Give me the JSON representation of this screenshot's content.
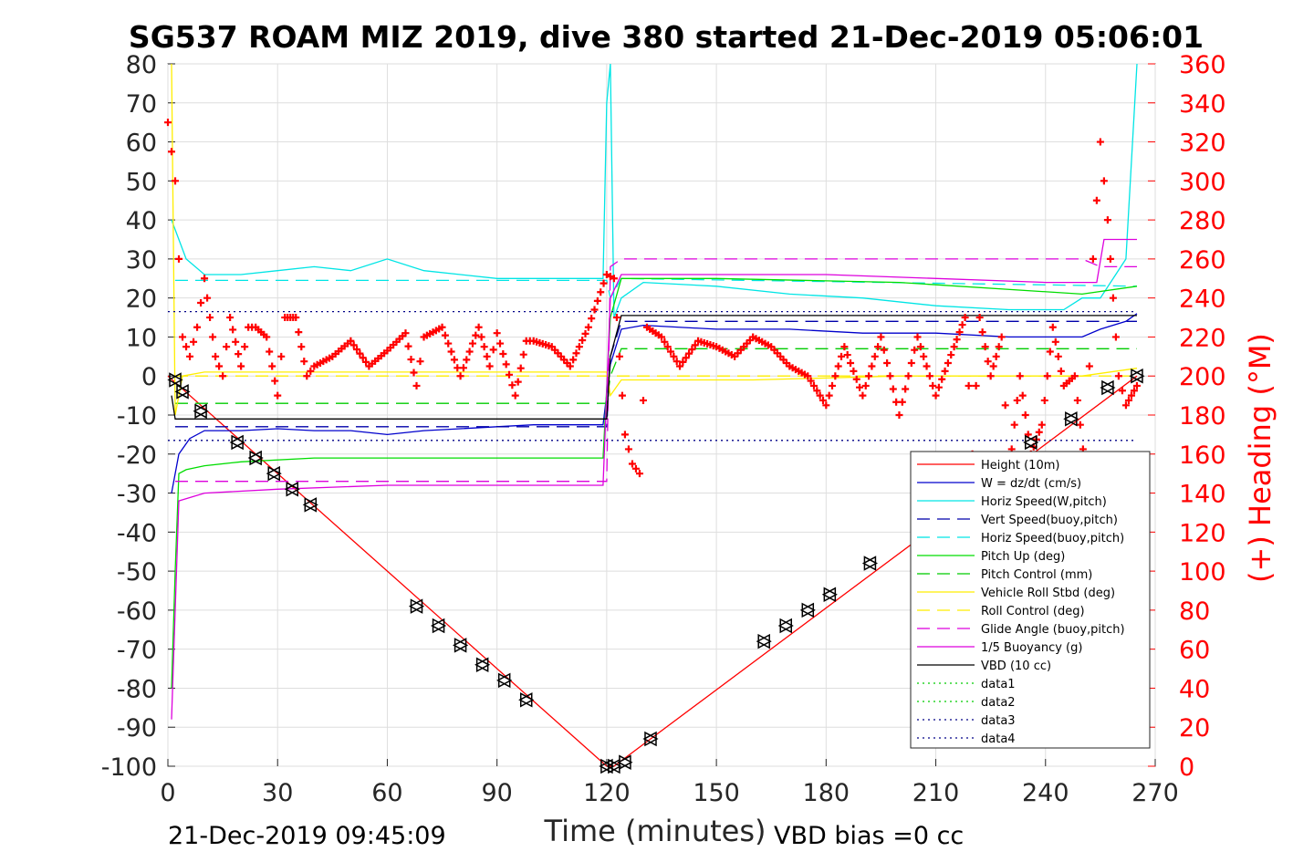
{
  "chart_data": {
    "type": "line",
    "title": "SG537 ROAM MIZ 2019, dive 380 started 21-Dec-2019 05:06:01",
    "xlabel": "Time (minutes)",
    "ylabel_right": "(+) Heading (°M)",
    "xlim": [
      0,
      270
    ],
    "ylim": [
      -100,
      80
    ],
    "ylim_right": [
      0,
      360
    ],
    "x_ticks": [
      "0",
      "30",
      "60",
      "90",
      "120",
      "150",
      "180",
      "210",
      "240",
      "270"
    ],
    "y_ticks": [
      "80",
      "70",
      "60",
      "50",
      "40",
      "30",
      "20",
      "10",
      "0",
      "-10",
      "-20",
      "-30",
      "-40",
      "-50",
      "-60",
      "-70",
      "-80",
      "-90",
      "-100"
    ],
    "y_ticks_right": [
      "360",
      "340",
      "320",
      "300",
      "280",
      "260",
      "240",
      "220",
      "200",
      "180",
      "160",
      "140",
      "120",
      "100",
      "80",
      "60",
      "40",
      "20",
      "0"
    ],
    "grid": true,
    "legend_position": "bottom-right",
    "footer_left": "21-Dec-2019 09:45:09",
    "footer_right": "VBD bias =0 cc",
    "colors": {
      "red": "#ff0000",
      "blue": "#0000cc",
      "cyan": "#00e5e5",
      "green": "#00dd00",
      "yellow": "#ffee00",
      "magenta": "#dd00dd",
      "black": "#000000",
      "navy": "#000088"
    },
    "series": [
      {
        "name": "Height (10m)",
        "color": "#ff0000",
        "style": "solid",
        "x": [
          0,
          120,
          122,
          265
        ],
        "y": [
          0,
          -100,
          -100,
          0
        ]
      },
      {
        "name": "W = dz/dt (cm/s)",
        "color": "#0000cc",
        "style": "solid",
        "x": [
          1,
          3,
          6,
          10,
          20,
          30,
          40,
          50,
          60,
          70,
          80,
          90,
          100,
          110,
          119,
          121,
          124,
          130,
          150,
          170,
          190,
          210,
          230,
          245,
          250,
          255,
          262,
          265
        ],
        "y": [
          -30,
          -20,
          -16,
          -14,
          -14,
          -13.5,
          -14,
          -14,
          -15,
          -14,
          -13.5,
          -13,
          -12.5,
          -12.5,
          -12.5,
          3,
          12,
          13,
          12,
          12,
          11,
          11,
          10,
          10,
          10,
          12,
          14,
          16
        ]
      },
      {
        "name": "Horiz Speed(W,pitch)",
        "color": "#00e5e5",
        "style": "solid",
        "x": [
          1,
          3,
          5,
          10,
          20,
          30,
          40,
          50,
          60,
          70,
          80,
          90,
          100,
          110,
          119,
          120,
          121,
          122,
          124,
          130,
          150,
          170,
          190,
          210,
          230,
          245,
          250,
          255,
          262,
          265
        ],
        "y": [
          40,
          35,
          30,
          26,
          26,
          27,
          28,
          27,
          30,
          27,
          26,
          25,
          25,
          25,
          25,
          70,
          80,
          15,
          20,
          24,
          23,
          21,
          20,
          18,
          17,
          17,
          20,
          20,
          30,
          80
        ]
      },
      {
        "name": "Vert Speed(buoy,pitch)",
        "color": "#0000aa",
        "style": "dashed",
        "x": [
          2,
          120,
          121,
          124,
          265
        ],
        "y": [
          -13,
          -13,
          5,
          14,
          14
        ]
      },
      {
        "name": "Horiz Speed(buoy,pitch)",
        "color": "#00e5e5",
        "style": "dashed",
        "x": [
          2,
          120,
          121,
          124,
          265
        ],
        "y": [
          24.5,
          24.5,
          20,
          25,
          23
        ]
      },
      {
        "name": "Pitch Up (deg)",
        "color": "#00dd00",
        "style": "solid",
        "x": [
          1,
          2,
          3,
          5,
          10,
          20,
          40,
          60,
          80,
          100,
          119,
          121,
          124,
          150,
          200,
          250,
          265
        ],
        "y": [
          -80,
          -50,
          -25,
          -24,
          -23,
          -22,
          -21,
          -21,
          -21,
          -21,
          -21,
          15,
          25,
          25,
          24,
          21,
          23
        ]
      },
      {
        "name": "Pitch Control (mm)",
        "color": "#00cc00",
        "style": "dashed",
        "x": [
          2,
          120,
          121,
          124,
          265
        ],
        "y": [
          -7,
          -7,
          0,
          7,
          7
        ]
      },
      {
        "name": "Vehicle Roll Stbd (deg)",
        "color": "#ffee00",
        "style": "solid",
        "x": [
          1,
          2,
          4,
          10,
          40,
          80,
          120,
          121,
          124,
          160,
          200,
          240,
          250,
          265
        ],
        "y": [
          80,
          -10,
          0,
          1,
          1,
          1,
          1,
          -5,
          -1,
          -1,
          0,
          0,
          0,
          2
        ]
      },
      {
        "name": "Roll Control (deg)",
        "color": "#ffee00",
        "style": "dashed",
        "x": [
          2,
          120,
          121,
          265
        ],
        "y": [
          0,
          0,
          0,
          0
        ]
      },
      {
        "name": "Glide Angle (buoy,pitch)",
        "color": "#dd00dd",
        "style": "dashed",
        "x": [
          2,
          120,
          121,
          124,
          250,
          255,
          265
        ],
        "y": [
          -27,
          -27,
          28,
          30,
          30,
          28,
          28
        ]
      },
      {
        "name": "1/5 Buoyancy (g)",
        "color": "#dd00dd",
        "style": "solid",
        "x": [
          1,
          3,
          10,
          30,
          60,
          90,
          119,
          121,
          124,
          180,
          240,
          254,
          256,
          265
        ],
        "y": [
          -88,
          -32,
          -30,
          -29,
          -28,
          -28,
          -28,
          20,
          26,
          26,
          24,
          24,
          35,
          35
        ]
      },
      {
        "name": "VBD (10 cc)",
        "color": "#000000",
        "style": "solid",
        "x": [
          1,
          2,
          120,
          121,
          124,
          265
        ],
        "y": [
          -5,
          -11,
          -11,
          5,
          15.5,
          15.5
        ]
      },
      {
        "name": "data1",
        "color": "#00cc00",
        "style": "dotted",
        "x": [],
        "y": []
      },
      {
        "name": "data2",
        "color": "#00cc00",
        "style": "dotted",
        "x": [],
        "y": []
      },
      {
        "name": "data3",
        "color": "#000088",
        "style": "dotted",
        "x": [
          0,
          265
        ],
        "y": [
          -16.5,
          -16.5
        ]
      },
      {
        "name": "data4",
        "color": "#000088",
        "style": "dotted",
        "x": [
          0,
          265
        ],
        "y": [
          16.5,
          16.5
        ]
      }
    ],
    "heading": {
      "color": "#ff0000",
      "marker": "+",
      "x": [
        0,
        2,
        4,
        6,
        8,
        10,
        13,
        15,
        17,
        20,
        22,
        24,
        27,
        30,
        32,
        35,
        38,
        40,
        45,
        50,
        55,
        60,
        65,
        68,
        70,
        75,
        80,
        85,
        88,
        90,
        95,
        98,
        100,
        105,
        110,
        115,
        120,
        122,
        125,
        127,
        129,
        131,
        135,
        140,
        145,
        150,
        155,
        160,
        165,
        170,
        175,
        180,
        185,
        190,
        195,
        200,
        205,
        210,
        215,
        218,
        220,
        222,
        225,
        228,
        230,
        233,
        236,
        239,
        242,
        245,
        248,
        251,
        253,
        255,
        257,
        260,
        262,
        265
      ],
      "y": [
        330,
        300,
        220,
        210,
        225,
        250,
        210,
        200,
        230,
        205,
        225,
        225,
        220,
        190,
        230,
        230,
        200,
        205,
        210,
        218,
        205,
        213,
        222,
        195,
        220,
        225,
        200,
        225,
        205,
        222,
        190,
        218,
        218,
        215,
        205,
        225,
        252,
        250,
        170,
        155,
        150,
        225,
        220,
        205,
        218,
        215,
        210,
        220,
        215,
        205,
        200,
        185,
        215,
        190,
        220,
        180,
        220,
        190,
        215,
        230,
        160,
        230,
        200,
        220,
        150,
        200,
        160,
        175,
        225,
        195,
        200,
        150,
        260,
        320,
        280,
        200,
        185,
        195
      ]
    },
    "depth_markers": {
      "symbol": "triangle",
      "x": [
        2,
        4,
        9,
        19,
        24,
        29,
        34,
        39,
        68,
        74,
        80,
        86,
        92,
        98,
        120,
        122,
        125,
        132,
        163,
        169,
        175,
        181,
        192,
        236,
        247,
        257,
        265
      ],
      "y": [
        -1,
        -4,
        -9,
        -17,
        -21,
        -25,
        -29,
        -33,
        -59,
        -64,
        -69,
        -74,
        -78,
        -83,
        -100,
        -100,
        -99,
        -93,
        -68,
        -64,
        -60,
        -56,
        -48,
        -17,
        -11,
        -3,
        0
      ]
    }
  }
}
